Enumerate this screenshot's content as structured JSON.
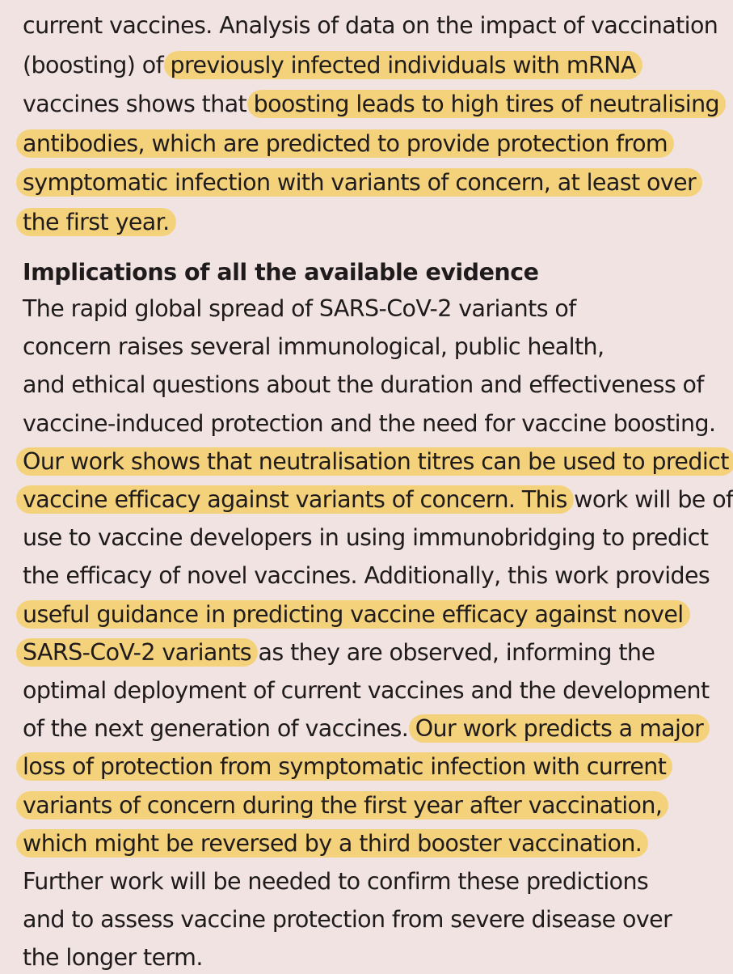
{
  "article": {
    "cut_off_line_above": "",
    "paragraph1_lines": [
      [
        "current vaccines. Analysis of data on the impact of vaccination"
      ],
      [
        "(boosting) of ",
        {
          "t": "previously infected individuals with mRNA",
          "hl": true
        }
      ],
      [
        "vaccines shows that ",
        {
          "t": "boosting leads to high tires of neutralising",
          "hl": true
        }
      ],
      [
        {
          "t": "antibodies, which are predicted to provide protection from",
          "hl": true
        }
      ],
      [
        {
          "t": "symptomatic infection with variants of concern, at least over",
          "hl": true
        }
      ],
      [
        {
          "t": "the first year.",
          "hl": true
        }
      ]
    ],
    "heading": "Implications of all the available evidence",
    "paragraph2_lines": [
      [
        "The rapid global spread of SARS-CoV-2 variants of"
      ],
      [
        "concern raises several immunological, public health,"
      ],
      [
        "and ethical questions about the duration and effectiveness of"
      ],
      [
        "vaccine-induced protection and the need for vaccine boosting."
      ],
      [
        {
          "t": "Our work shows that neutralisation titres can be used to predict",
          "hl": true
        }
      ],
      [
        {
          "t": "vaccine efficacy against variants of concern. This",
          "hl": true
        },
        " work will be of"
      ],
      [
        "use to vaccine developers in using immunobridging to predict"
      ],
      [
        "the efficacy of novel vaccines. Additionally, this work provides"
      ],
      [
        {
          "t": "useful guidance in predicting vaccine efficacy against novel",
          "hl": true
        }
      ],
      [
        {
          "t": "SARS-CoV-2 variants",
          "hl": true
        },
        " as they are observed, informing the"
      ],
      [
        "optimal deployment of current vaccines and the development"
      ],
      [
        "of the next generation of vaccines. ",
        {
          "t": "Our work predicts a major",
          "hl": true
        }
      ],
      [
        {
          "t": "loss of protection from symptomatic infection with current",
          "hl": true
        }
      ],
      [
        {
          "t": "variants of concern during the first year after vaccination,",
          "hl": true
        }
      ],
      [
        {
          "t": "which might be reversed by a third booster vaccination.",
          "hl": true
        }
      ],
      [
        "Further work will be needed to confirm these predictions"
      ],
      [
        "and to assess vaccine protection from severe disease over"
      ],
      [
        "the longer term."
      ]
    ],
    "colors": {
      "background": "#f1e3e2",
      "highlight": "#f4d27c",
      "text": "#1f1b1c"
    }
  }
}
